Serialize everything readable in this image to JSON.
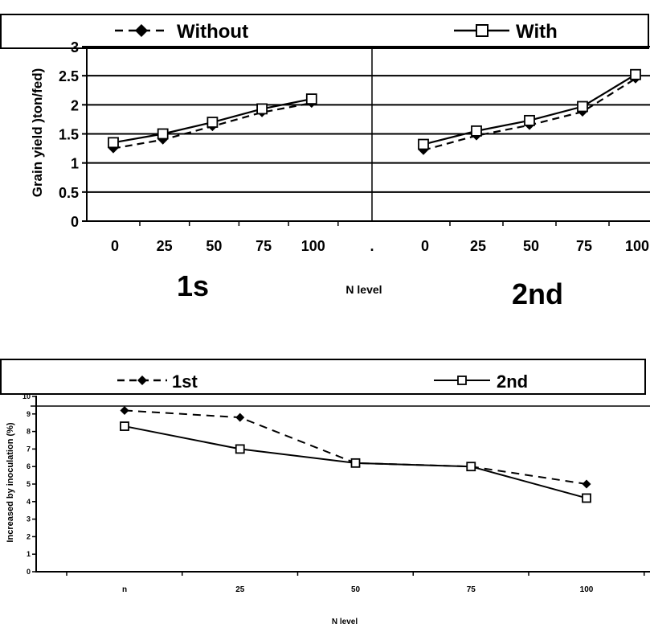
{
  "chart_data": [
    {
      "type": "line",
      "ylabel": "Grain yield )ton/fed)",
      "xlabel": "N level",
      "ylim": [
        0,
        3
      ],
      "yticks": [
        "0",
        "0.5",
        "1",
        "1.5",
        "2",
        "2.5",
        "3"
      ],
      "grid": true,
      "legend_position": "top",
      "panels": [
        {
          "label": "1s",
          "categories": [
            "0",
            "25",
            "50",
            "75",
            "100"
          ]
        },
        {
          "label": "2nd",
          "categories": [
            "0",
            "25",
            "50",
            "75",
            "100"
          ]
        }
      ],
      "panel_separator_label": ".",
      "series": [
        {
          "name": "Without",
          "style": "dashed",
          "marker": "diamond",
          "values": [
            [
              1.25,
              1.4,
              1.63,
              1.87,
              2.03
            ],
            [
              1.22,
              1.47,
              1.65,
              1.88,
              2.45
            ]
          ]
        },
        {
          "name": "With",
          "style": "solid",
          "marker": "square",
          "values": [
            [
              1.35,
              1.5,
              1.7,
              1.93,
              2.1
            ],
            [
              1.32,
              1.55,
              1.73,
              1.97,
              2.52
            ]
          ]
        }
      ]
    },
    {
      "type": "line",
      "ylabel": "Increased by inoculation (%)",
      "xlabel": "N level",
      "ylim": [
        0,
        10
      ],
      "yticks": [
        "0",
        "1",
        "2",
        "3",
        "4",
        "5",
        "6",
        "7",
        "8",
        "9",
        "10"
      ],
      "categories": [
        "n",
        "25",
        "50",
        "75",
        "100"
      ],
      "grid": false,
      "legend_position": "top",
      "series": [
        {
          "name": "1st",
          "style": "dashed",
          "marker": "diamond",
          "values": [
            9.2,
            8.8,
            6.2,
            6.0,
            5.0
          ]
        },
        {
          "name": "2nd",
          "style": "solid",
          "marker": "square",
          "values": [
            8.3,
            7.0,
            6.2,
            6.0,
            4.2
          ]
        }
      ]
    }
  ],
  "colors": {
    "line": "#000000",
    "background": "#ffffff",
    "marker_fill_open": "#ffffff"
  }
}
